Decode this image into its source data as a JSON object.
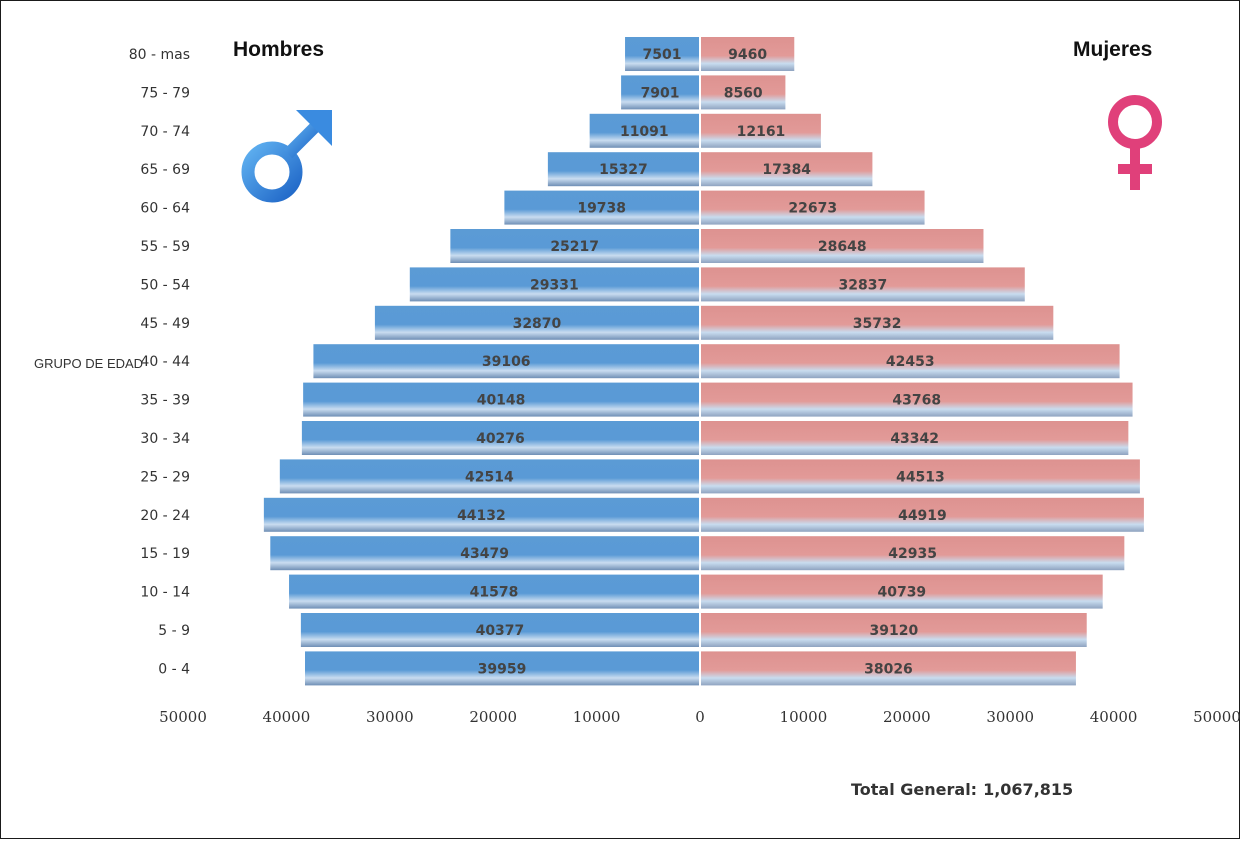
{
  "titles": {
    "left": "Hombres",
    "right": "Mujeres"
  },
  "icons": {
    "male": "male-symbol-icon",
    "female": "female-symbol-icon"
  },
  "total": {
    "label": "Total General:",
    "value": "1,067,815"
  },
  "colors": {
    "male": "#5b9bd5",
    "female": "#e09a9a",
    "male_icon": "#2e78d6",
    "female_icon": "#e0407a"
  },
  "chart_data": {
    "type": "bar",
    "orientation": "horizontal",
    "layout": "population-pyramid",
    "ylabel": "GRUPO DE EDAD",
    "categories": [
      "80 - mas",
      "75 - 79",
      "70 - 74",
      "65 - 69",
      "60 - 64",
      "55 - 59",
      "50 - 54",
      "45 - 49",
      "40 - 44",
      "35 - 39",
      "30 - 34",
      "25 - 29",
      "20 - 24",
      "15 - 19",
      "10 - 14",
      "5 - 9",
      "0 - 4"
    ],
    "series": [
      {
        "name": "Hombres",
        "side": "left",
        "values": [
          7501,
          7901,
          11091,
          15327,
          19738,
          25217,
          29331,
          32870,
          39106,
          40148,
          40276,
          42514,
          44132,
          43479,
          41578,
          40377,
          39959
        ]
      },
      {
        "name": "Mujeres",
        "side": "right",
        "values": [
          9460,
          8560,
          12161,
          17384,
          22673,
          28648,
          32837,
          35732,
          42453,
          43768,
          43342,
          44513,
          44919,
          42935,
          40739,
          39120,
          38026
        ]
      }
    ],
    "xlim": [
      -50000,
      50000
    ],
    "xticks": [
      -50000,
      -40000,
      -30000,
      -20000,
      -10000,
      0,
      10000,
      20000,
      30000,
      40000,
      50000
    ],
    "xtick_labels": [
      "50000",
      "40000",
      "30000",
      "20000",
      "10000",
      "0",
      "10000",
      "20000",
      "30000",
      "40000",
      "50000"
    ],
    "grid": false,
    "data_labels": true
  }
}
